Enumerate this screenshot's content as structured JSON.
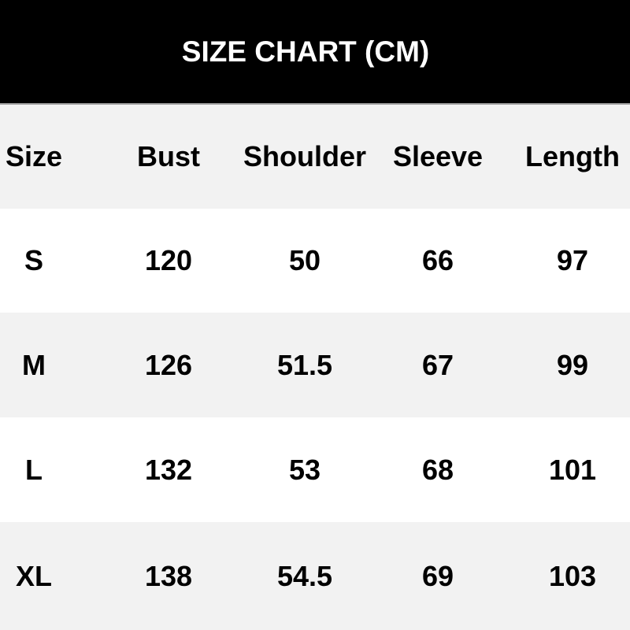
{
  "banner": {
    "title": "SIZE CHART (CM)"
  },
  "chart_data": {
    "type": "table",
    "title": "SIZE CHART (CM)",
    "unit_note": "CM",
    "columns": [
      "Size",
      "Bust",
      "Shoulder",
      "Sleeve",
      "Length"
    ],
    "rows": [
      [
        "S",
        "120",
        "50",
        "66",
        "97"
      ],
      [
        "M",
        "126",
        "51.5",
        "67",
        "99"
      ],
      [
        "L",
        "132",
        "53",
        "68",
        "101"
      ],
      [
        "XL",
        "138",
        "54.5",
        "69",
        "103"
      ]
    ]
  },
  "colors": {
    "banner_bg": "#000000",
    "banner_text": "#ffffff",
    "row_bg": "#ffffff",
    "row_alt_bg": "#f2f2f2",
    "text": "#000000"
  }
}
